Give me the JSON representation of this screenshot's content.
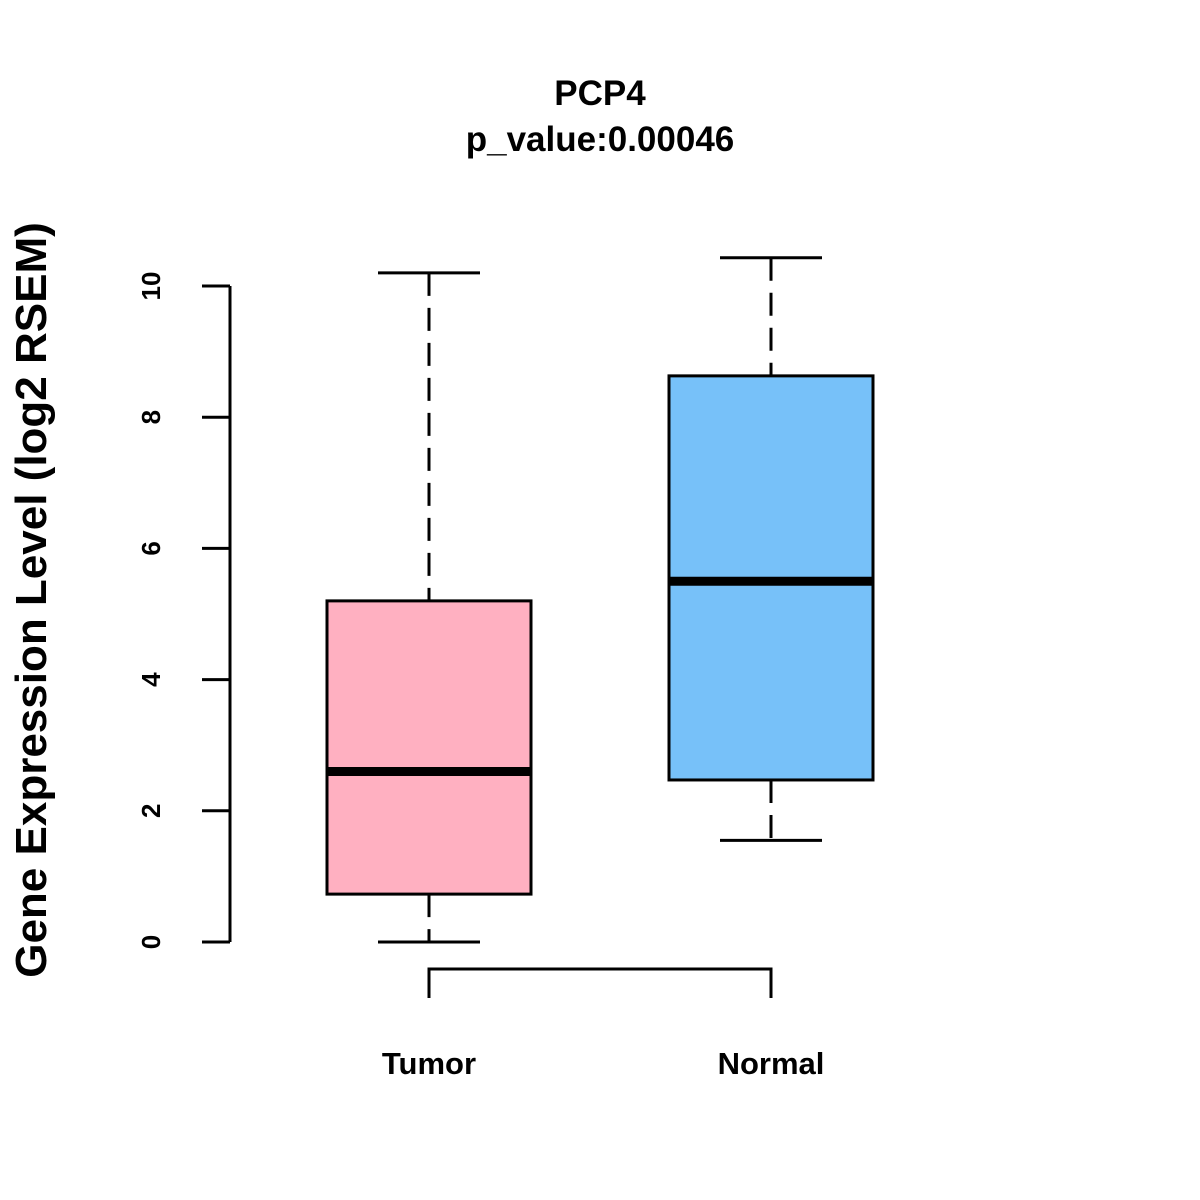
{
  "chart_data": {
    "type": "box",
    "title": "PCP4",
    "subtitle": "p_value:0.00046",
    "xlabel": "",
    "ylabel": "Gene Expression Level (log2 RSEM)",
    "ylim": [
      0,
      10.2
    ],
    "yticks": [
      0,
      2,
      4,
      6,
      8,
      10
    ],
    "categories": [
      "Tumor",
      "Normal"
    ],
    "boxes": [
      {
        "name": "Tumor",
        "min": 0.0,
        "q1": 0.73,
        "median": 2.6,
        "q3": 5.2,
        "max": 10.2,
        "color": "#FFB0C1"
      },
      {
        "name": "Normal",
        "min": 1.55,
        "q1": 2.47,
        "median": 5.5,
        "q3": 8.63,
        "max": 10.43,
        "color": "#77C1F9"
      }
    ],
    "comparison_bracket": [
      "Tumor",
      "Normal"
    ]
  }
}
